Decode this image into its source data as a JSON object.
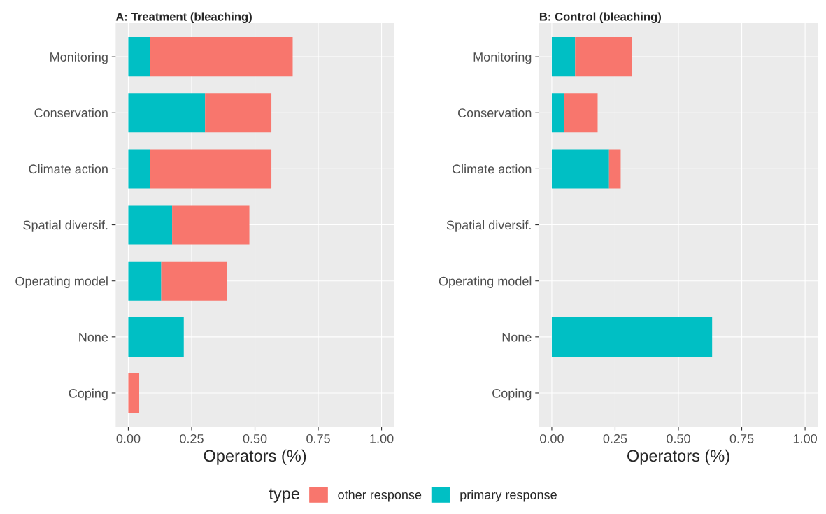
{
  "chart_data": [
    {
      "type": "bar",
      "orientation": "horizontal",
      "stacked": true,
      "title": "A: Treatment (bleaching)",
      "xlabel": "Operators (%)",
      "categories": [
        "Monitoring",
        "Conservation",
        "Climate action",
        "Spatial diversif.",
        "Operating model",
        "None",
        "Coping"
      ],
      "series": [
        {
          "name": "primary response",
          "color": "#00bfc4",
          "values": [
            0.086,
            0.303,
            0.086,
            0.173,
            0.13,
            0.219,
            null
          ]
        },
        {
          "name": "other response",
          "color": "#f8766d",
          "values": [
            0.563,
            0.262,
            0.479,
            0.305,
            0.259,
            null,
            0.043
          ]
        }
      ],
      "xlim": [
        -0.05,
        1.05
      ],
      "xticks": [
        {
          "value": 0,
          "label": "0.00"
        },
        {
          "value": 0.25,
          "label": "0.25"
        },
        {
          "value": 0.5,
          "label": "0.50"
        },
        {
          "value": 0.75,
          "label": "0.75"
        },
        {
          "value": 1,
          "label": "1.00"
        }
      ],
      "grid": true,
      "legend": "bottom",
      "legend_title": "type"
    },
    {
      "type": "bar",
      "orientation": "horizontal",
      "stacked": true,
      "title": "B: Control (bleaching)",
      "xlabel": "Operators (%)",
      "categories": [
        "Monitoring",
        "Conservation",
        "Climate action",
        "Spatial diversif.",
        "Operating model",
        "None",
        "Coping"
      ],
      "series": [
        {
          "color": "#00bfc4",
          "values": [
            0.092,
            0.049,
            0.226,
            null,
            null,
            0.633,
            null
          ]
        },
        {
          "color": "#f8766d",
          "values": [
            0.223,
            0.132,
            0.046,
            null,
            null,
            null,
            null
          ]
        }
      ],
      "xlim": [
        -0.05,
        1.05
      ],
      "xticks": [
        {
          "value": 0,
          "label": "0.00"
        },
        {
          "value": 0.25,
          "label": "0.25"
        },
        {
          "value": 0.5,
          "label": "0.50"
        },
        {
          "value": 0.75,
          "label": "0.75"
        },
        {
          "value": 1,
          "label": "1.00"
        }
      ],
      "grid": true
    }
  ]
}
